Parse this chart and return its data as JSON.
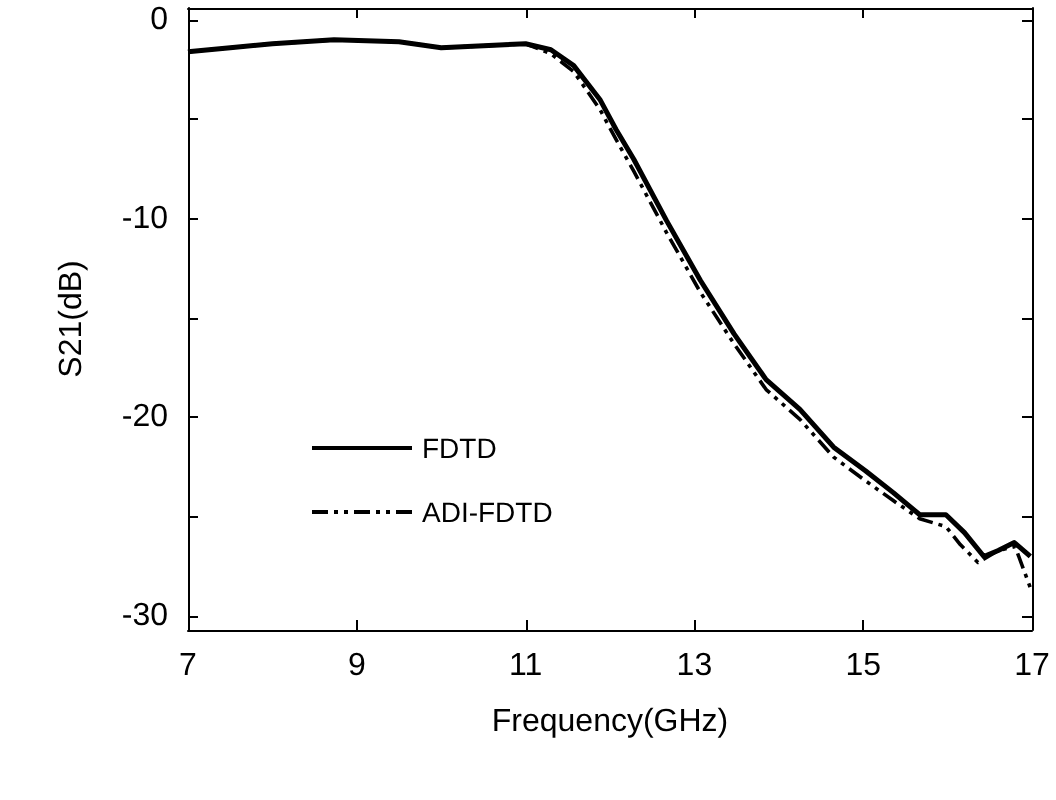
{
  "chart_data": {
    "type": "line",
    "xlabel": "Frequency(GHz)",
    "ylabel": "S21(dB)",
    "xlim": [
      7,
      17
    ],
    "xticks": [
      7,
      9,
      11,
      13,
      15,
      17
    ],
    "ylim": [
      -30.7,
      0.6
    ],
    "yticks": [
      0,
      {
        "value": -5,
        "label": null
      },
      -10,
      {
        "value": -15,
        "label": null
      },
      -20,
      {
        "value": -25,
        "label": null
      },
      -30
    ],
    "grid": false,
    "legend": "bottom left",
    "marker": "none",
    "series": [
      {
        "name": "FDTD",
        "color": "#000000",
        "line_style": "solid",
        "x": [
          7,
          7.5,
          8,
          8.73,
          9.5,
          10,
          10.5,
          11,
          11.3,
          11.57,
          11.88,
          12.07,
          12.28,
          12.67,
          13.07,
          13.47,
          13.85,
          14.25,
          14.65,
          15.03,
          15.36,
          15.67,
          15.98,
          16.2,
          16.43,
          16.6,
          16.79,
          16.98
        ],
        "values": [
          -1.6,
          -1.4,
          -1.2,
          -1.0,
          -1.1,
          -1.4,
          -1.3,
          -1.2,
          -1.5,
          -2.3,
          -4.0,
          -5.5,
          -7.0,
          -10.1,
          -13.1,
          -15.8,
          -18.1,
          -19.6,
          -21.5,
          -22.7,
          -23.8,
          -24.9,
          -24.9,
          -25.8,
          -27.0,
          -26.7,
          -26.3,
          -27.0
        ]
      },
      {
        "name": "ADI-FDTD",
        "color": "#000000",
        "line_style": "dashed",
        "x": [
          7,
          7.5,
          8,
          8.73,
          9.5,
          10,
          10.5,
          11,
          11.3,
          11.57,
          11.88,
          12.07,
          12.28,
          12.67,
          13.07,
          13.47,
          13.85,
          14.25,
          14.65,
          15.03,
          15.36,
          15.67,
          15.98,
          16.15,
          16.36,
          16.6,
          16.8,
          17.0
        ],
        "values": [
          -1.6,
          -1.4,
          -1.2,
          -1.0,
          -1.1,
          -1.4,
          -1.3,
          -1.2,
          -1.7,
          -2.6,
          -4.5,
          -6.0,
          -7.6,
          -10.7,
          -13.7,
          -16.3,
          -18.6,
          -20.1,
          -22.0,
          -23.2,
          -24.2,
          -25.1,
          -25.5,
          -26.4,
          -27.3,
          -26.7,
          -26.5,
          -28.8
        ]
      }
    ]
  }
}
